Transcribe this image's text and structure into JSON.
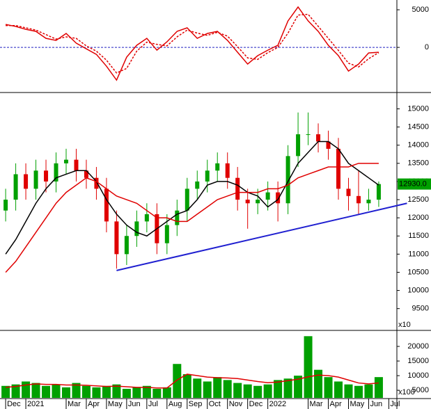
{
  "chart_data": [
    {
      "type": "line",
      "xlim": [
        -0.28,
        19.4
      ],
      "ylim": [
        -6000,
        6300
      ],
      "yticks": [
        0,
        5000
      ],
      "zero_line": true,
      "zero_color": "#2020c0",
      "x": [
        0,
        0.5,
        1,
        1.5,
        2,
        2.5,
        3,
        3.5,
        4,
        4.5,
        5,
        5.5,
        6,
        6.5,
        7,
        7.5,
        8,
        8.5,
        9,
        9.5,
        10,
        10.5,
        11,
        11.5,
        12,
        12.5,
        13,
        13.5,
        14,
        14.5,
        15,
        15.5,
        16,
        16.5,
        17,
        17.5,
        18,
        18.5
      ],
      "series": [
        {
          "color": "#e00000",
          "dashed": false,
          "values": [
            3050,
            2780,
            2400,
            2130,
            1200,
            930,
            1850,
            560,
            -190,
            -930,
            -2500,
            -4350,
            -1300,
            280,
            1200,
            -370,
            740,
            2130,
            2600,
            1200,
            1850,
            2130,
            930,
            -650,
            -2220,
            -1100,
            -370,
            280,
            3520,
            5370,
            3520,
            2130,
            280,
            -1100,
            -3150,
            -2220,
            -740,
            -650
          ]
        },
        {
          "color": "#e00000",
          "dashed": true,
          "values": [
            2900,
            2900,
            2600,
            2300,
            1700,
            1100,
            1400,
            1200,
            200,
            -500,
            -1700,
            -3400,
            -2800,
            -500,
            700,
            400,
            200,
            1400,
            2300,
            1900,
            1600,
            2000,
            1500,
            100,
            -1400,
            -1600,
            -700,
            0,
            1900,
            4300,
            4400,
            2800,
            1200,
            -400,
            -2100,
            -2600,
            -1500,
            -700
          ]
        }
      ]
    },
    {
      "type": "candlestick",
      "xlim": [
        -0.28,
        19.4
      ],
      "ylim": [
        8900,
        15450
      ],
      "yticks": [
        9500,
        10000,
        10500,
        11000,
        11500,
        12000,
        12500,
        13000,
        13500,
        14000,
        14500,
        15000
      ],
      "unit_label": "x10",
      "up_color": "#00a000",
      "down_color": "#e00000",
      "x": [
        0,
        0.5,
        1,
        1.5,
        2,
        2.5,
        3,
        3.5,
        4,
        4.5,
        5,
        5.5,
        6,
        6.5,
        7,
        7.5,
        8,
        8.5,
        9,
        9.5,
        10,
        10.5,
        11,
        11.5,
        12,
        12.5,
        13,
        13.5,
        14,
        14.5,
        15,
        15.5,
        16,
        16.5,
        17,
        17.5,
        18,
        18.5
      ],
      "open": [
        12200,
        12500,
        13200,
        12800,
        13300,
        13000,
        13500,
        13600,
        13300,
        13100,
        12800,
        11900,
        11000,
        11500,
        11900,
        12100,
        11300,
        11800,
        12200,
        12800,
        13000,
        13300,
        13500,
        13100,
        12500,
        12400,
        12500,
        12700,
        12400,
        13700,
        14300,
        14300,
        14100,
        13900,
        12800,
        12600,
        12400,
        12500
      ],
      "high": [
        12800,
        13500,
        13500,
        13600,
        13600,
        13800,
        13900,
        13900,
        13600,
        13400,
        13100,
        12200,
        11800,
        12200,
        12400,
        12400,
        12100,
        12500,
        13100,
        13300,
        13600,
        13800,
        13800,
        13400,
        12800,
        12800,
        13000,
        13000,
        14000,
        14900,
        14900,
        14600,
        14400,
        14200,
        13100,
        13300,
        12800,
        13000
      ],
      "low": [
        11900,
        12200,
        12500,
        12500,
        12700,
        12700,
        13200,
        13000,
        12800,
        12500,
        11600,
        10600,
        10700,
        11200,
        11600,
        11000,
        11000,
        11500,
        11900,
        12500,
        12700,
        13000,
        12800,
        12200,
        11700,
        12100,
        12200,
        11900,
        12100,
        13400,
        14000,
        13800,
        13600,
        12500,
        12200,
        12100,
        12200,
        12300
      ],
      "close": [
        12500,
        13200,
        12800,
        13300,
        13000,
        13500,
        13600,
        13300,
        13100,
        12800,
        11900,
        11000,
        11500,
        11900,
        12100,
        11300,
        11800,
        12200,
        12800,
        13000,
        13300,
        13500,
        13100,
        12500,
        12400,
        12500,
        12700,
        12400,
        13700,
        14300,
        14300,
        14100,
        13900,
        12800,
        12600,
        12400,
        12500,
        12930
      ],
      "series": [
        {
          "color": "#000000",
          "values": [
            11000,
            11400,
            11900,
            12400,
            12800,
            13100,
            13200,
            13300,
            13300,
            13000,
            12500,
            12100,
            11800,
            11600,
            11500,
            11700,
            11900,
            12100,
            12200,
            12500,
            12900,
            13000,
            13000,
            12900,
            12700,
            12600,
            12300,
            12500,
            13000,
            13500,
            13800,
            14100,
            14100,
            13900,
            13500,
            13300,
            13100,
            12900
          ]
        },
        {
          "color": "#e00000",
          "values": [
            10500,
            10800,
            11200,
            11600,
            12000,
            12400,
            12700,
            12900,
            13100,
            13000,
            12800,
            12600,
            12500,
            12400,
            12200,
            12000,
            12000,
            11900,
            11900,
            12100,
            12300,
            12500,
            12600,
            12700,
            12700,
            12700,
            12800,
            12800,
            12900,
            13100,
            13200,
            13300,
            13400,
            13400,
            13400,
            13500,
            13500,
            13500
          ]
        }
      ],
      "trendline": {
        "color": "#1f1fd0",
        "x": [
          5.5,
          19.9
        ],
        "values": [
          10550,
          12400
        ]
      },
      "last_price": {
        "value": 12930,
        "label": "12930.0"
      }
    },
    {
      "type": "bar",
      "xlim": [
        -0.28,
        19.4
      ],
      "ylim": [
        2400,
        25000
      ],
      "yticks": [
        5000,
        10000,
        15000,
        20000
      ],
      "unit_label": "x100",
      "color": "#00a000",
      "x": [
        0,
        0.5,
        1,
        1.5,
        2,
        2.5,
        3,
        3.5,
        4,
        4.5,
        5,
        5.5,
        6,
        6.5,
        7,
        7.5,
        8,
        8.5,
        9,
        9.5,
        10,
        10.5,
        11,
        11.5,
        12,
        12.5,
        13,
        13.5,
        14,
        14.5,
        15,
        15.5,
        16,
        16.5,
        17,
        17.5,
        18,
        18.5
      ],
      "values": [
        6500,
        7000,
        8000,
        7500,
        6500,
        7000,
        6000,
        7500,
        6500,
        6000,
        6500,
        7000,
        5500,
        6000,
        6500,
        5500,
        6000,
        14000,
        10500,
        9000,
        8000,
        9500,
        8500,
        7500,
        7000,
        6500,
        7000,
        8500,
        9000,
        10000,
        23500,
        12000,
        9500,
        8000,
        7000,
        6500,
        7000,
        9500
      ],
      "series": [
        {
          "color": "#e00000",
          "values": [
            6000,
            6300,
            6800,
            7200,
            7000,
            7000,
            6800,
            6800,
            6700,
            6500,
            6300,
            6400,
            6200,
            6000,
            6000,
            5800,
            5800,
            8500,
            10500,
            10000,
            9500,
            9300,
            9200,
            9000,
            8500,
            8000,
            7600,
            7800,
            8300,
            8800,
            9600,
            10200,
            10000,
            9500,
            8500,
            7500,
            7200,
            7500
          ]
        }
      ],
      "xticks": [
        {
          "value": 0,
          "label": "Dec"
        },
        {
          "value": 1,
          "label": "2021"
        },
        {
          "value": 3,
          "label": "Mar"
        },
        {
          "value": 4,
          "label": "Apr"
        },
        {
          "value": 5,
          "label": "May"
        },
        {
          "value": 6,
          "label": "Jun"
        },
        {
          "value": 7,
          "label": "Jul"
        },
        {
          "value": 8,
          "label": "Aug"
        },
        {
          "value": 9,
          "label": "Sep"
        },
        {
          "value": 10,
          "label": "Oct"
        },
        {
          "value": 11,
          "label": "Nov"
        },
        {
          "value": 12,
          "label": "Dec"
        },
        {
          "value": 13,
          "label": "2022"
        },
        {
          "value": 15,
          "label": "Mar"
        },
        {
          "value": 16,
          "label": "Apr"
        },
        {
          "value": 17,
          "label": "May"
        },
        {
          "value": 18,
          "label": "Jun"
        },
        {
          "value": 19,
          "label": "Jul"
        }
      ]
    }
  ]
}
